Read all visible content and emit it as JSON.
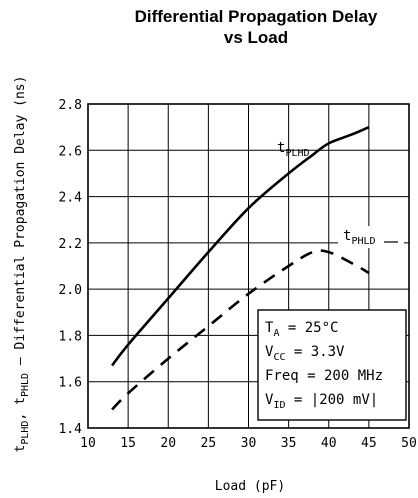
{
  "chart_data": {
    "type": "line",
    "title_line1": "Differential Propagation Delay",
    "title_line2": "vs Load",
    "xlabel": "Load (pF)",
    "ylabel": {
      "t1": "t",
      "t1_sub": "PLHD",
      "sep": ", ",
      "t2": "t",
      "t2_sub": "PHLD",
      "rest": " – Differential Propagation Delay (ns)"
    },
    "xlim": [
      10,
      50
    ],
    "ylim": [
      1.4,
      2.8
    ],
    "x_ticks": [
      "10",
      "15",
      "20",
      "25",
      "30",
      "35",
      "40",
      "45",
      "50"
    ],
    "y_ticks": [
      "1.4",
      "1.6",
      "1.8",
      "2.0",
      "2.2",
      "2.4",
      "2.6",
      "2.8"
    ],
    "grid": true,
    "series": [
      {
        "name_main": "t",
        "name_sub": "PLHD",
        "style": "solid",
        "x": [
          13,
          15,
          20,
          25,
          30,
          35,
          38,
          40,
          43,
          45
        ],
        "y": [
          1.67,
          1.76,
          1.96,
          2.16,
          2.35,
          2.5,
          2.58,
          2.63,
          2.67,
          2.7
        ]
      },
      {
        "name_main": "t",
        "name_sub": "PHLD",
        "style": "dashed",
        "x": [
          13,
          15,
          20,
          25,
          30,
          35,
          38,
          40,
          43,
          45
        ],
        "y": [
          1.48,
          1.55,
          1.7,
          1.84,
          1.98,
          2.1,
          2.16,
          2.16,
          2.11,
          2.07
        ]
      }
    ],
    "conditions": [
      {
        "main": "T",
        "sub": "A",
        "rest": " = 25°C"
      },
      {
        "main": "V",
        "sub": "CC",
        "rest": " = 3.3V"
      },
      {
        "main": "Freq = 200 MHz",
        "sub": "",
        "rest": ""
      },
      {
        "main": "V",
        "sub": "ID",
        "rest": " = |200 mV|"
      }
    ]
  }
}
